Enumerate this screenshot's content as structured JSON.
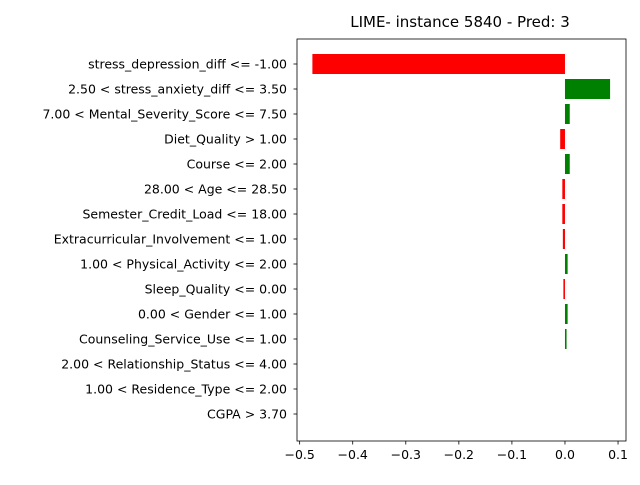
{
  "chart_data": {
    "type": "bar",
    "orientation": "horizontal",
    "title": "LIME- instance 5840 - Pred: 3",
    "xlabel": "",
    "ylabel": "",
    "xlim": [
      -0.505,
      0.115
    ],
    "xticks": [
      -0.5,
      -0.4,
      -0.3,
      -0.2,
      -0.1,
      0.0,
      0.1
    ],
    "xtick_labels": [
      "−0.5",
      "−0.4",
      "−0.3",
      "−0.2",
      "−0.1",
      "0.0",
      "0.1"
    ],
    "grid": false,
    "positive_color": "#008000",
    "negative_color": "#ff0000",
    "categories": [
      "stress_depression_diff <= -1.00",
      "2.50 < stress_anxiety_diff <= 3.50",
      "7.00 < Mental_Severity_Score <= 7.50",
      "Diet_Quality > 1.00",
      "Course <= 2.00",
      "28.00 < Age <= 28.50",
      "Semester_Credit_Load <= 18.00",
      "Extracurricular_Involvement <= 1.00",
      "1.00 < Physical_Activity <= 2.00",
      "Sleep_Quality <= 0.00",
      "0.00 < Gender <= 1.00",
      "Counseling_Service_Use <= 1.00",
      "2.00 < Relationship_Status <= 4.00",
      "1.00 < Residence_Type <= 2.00",
      "CGPA > 3.70"
    ],
    "values": [
      -0.476,
      0.085,
      0.009,
      -0.009,
      0.009,
      -0.005,
      -0.005,
      -0.004,
      0.005,
      -0.003,
      0.005,
      0.003,
      0.0,
      0.0,
      0.0
    ]
  }
}
